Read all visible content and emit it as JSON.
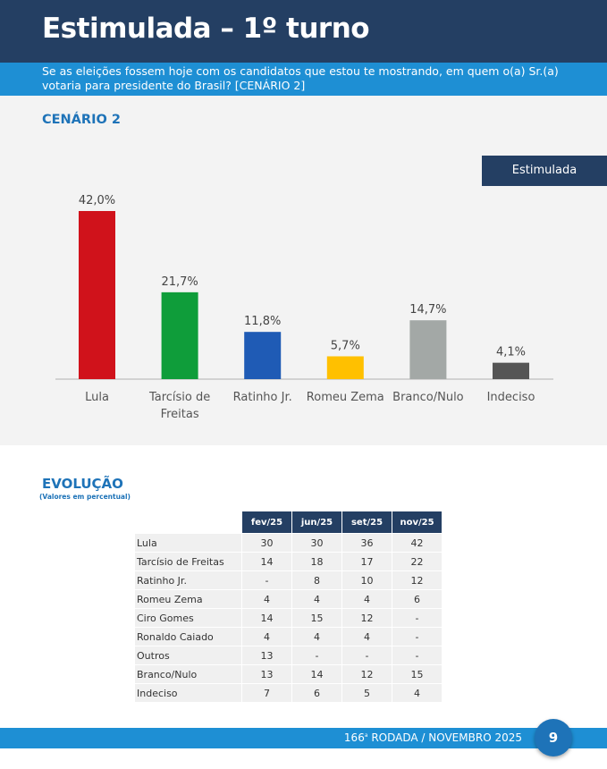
{
  "header": {
    "title": "Estimulada – 1º turno",
    "subtitle": "Se as eleições fossem hoje com os candidatos que estou te mostrando, em quem o(a) Sr.(a) votaria para presidente do Brasil? [CENÁRIO 2]"
  },
  "chart_section": {
    "scenario_label": "CENÁRIO 2",
    "legend_tag": "Estimulada"
  },
  "chart_data": {
    "type": "bar",
    "categories": [
      "Lula",
      "Tarcísio de Freitas",
      "Ratinho Jr.",
      "Romeu Zema",
      "Branco/Nulo",
      "Indeciso"
    ],
    "series": [
      {
        "name": "Estimulada",
        "values": [
          42.0,
          21.7,
          11.8,
          5.7,
          14.7,
          4.1
        ],
        "labels": [
          "42,0%",
          "21,7%",
          "11,8%",
          "5,7%",
          "14,7%",
          "4,1%"
        ]
      }
    ],
    "bar_colors": [
      "#d0121b",
      "#0f9d3a",
      "#1f5bb5",
      "#ffc000",
      "#a3a8a6",
      "#555555"
    ],
    "grid": false,
    "ylim": [
      0,
      42
    ]
  },
  "evolution": {
    "title": "EVOLUÇÃO",
    "subtitle": "(Valores em percentual)",
    "columns": [
      "fev/25",
      "jun/25",
      "set/25",
      "nov/25"
    ],
    "rows": [
      {
        "name": "Lula",
        "values": [
          "30",
          "30",
          "36",
          "42"
        ]
      },
      {
        "name": "Tarcísio de Freitas",
        "values": [
          "14",
          "18",
          "17",
          "22"
        ]
      },
      {
        "name": "Ratinho Jr.",
        "values": [
          "-",
          "8",
          "10",
          "12"
        ]
      },
      {
        "name": "Romeu Zema",
        "values": [
          "4",
          "4",
          "4",
          "6"
        ]
      },
      {
        "name": "Ciro Gomes",
        "values": [
          "14",
          "15",
          "12",
          "-"
        ]
      },
      {
        "name": "Ronaldo Caiado",
        "values": [
          "4",
          "4",
          "4",
          "-"
        ]
      },
      {
        "name": "Outros",
        "values": [
          "13",
          "-",
          "-",
          "-"
        ]
      },
      {
        "name": "Branco/Nulo",
        "values": [
          "13",
          "14",
          "12",
          "15"
        ]
      },
      {
        "name": "Indeciso",
        "values": [
          "7",
          "6",
          "5",
          "4"
        ]
      }
    ]
  },
  "footer": {
    "round_number": "166",
    "round_suffix": "a",
    "round_text": " RODADA / NOVEMBRO 2025",
    "page_number": "9"
  }
}
